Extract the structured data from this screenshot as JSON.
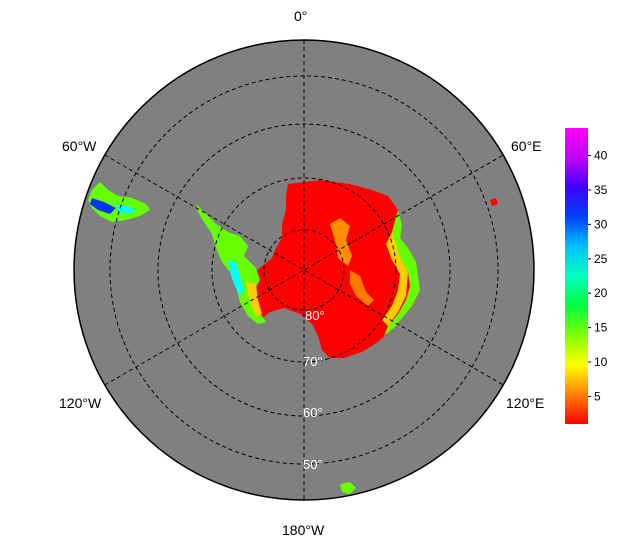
{
  "map": {
    "projection": "south-polar-stereographic",
    "ocean_color": "#808080",
    "border_color": "#000000",
    "longitude_labels": [
      "0°",
      "60°E",
      "120°E",
      "180°W",
      "120°W",
      "60°W"
    ],
    "latitude_labels": [
      "80°",
      "70°",
      "60°",
      "50°"
    ]
  },
  "colorbar": {
    "colors": [
      "#ff0000",
      "#ff8000",
      "#ffff00",
      "#80ff00",
      "#00ff40",
      "#00ffc0",
      "#00c0ff",
      "#0040ff",
      "#4000ff",
      "#c000ff",
      "#ff00ff"
    ],
    "min": 1,
    "max": 44,
    "tick_labels": [
      "5",
      "10",
      "15",
      "20",
      "25",
      "30",
      "35",
      "40"
    ]
  },
  "land": {
    "colors": {
      "interior": "#ff0000",
      "edge_yellow": "#ffcc00",
      "edge_green": "#66ff00",
      "peninsula_cyan": "#00ffff",
      "peninsula_blue": "#0033ff"
    }
  }
}
